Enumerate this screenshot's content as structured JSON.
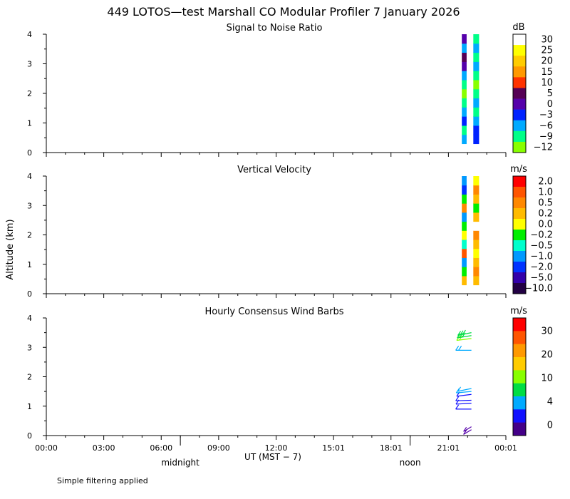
{
  "title": "449 LOTOS—test Marshall CO Modular Profiler  7 January 2026",
  "ylabel": "Altitude (km)",
  "xlabel": "UT  (MST − 7)",
  "footer": "Simple filtering applied",
  "x_marks": [
    {
      "label": "midnight",
      "hour": 7
    },
    {
      "label": "noon",
      "hour": 19
    }
  ],
  "chart_data": [
    {
      "type": "heatmap",
      "title": "Signal to Noise Ratio",
      "units": "dB",
      "ylim": [
        0,
        4
      ],
      "yticks": [
        "0",
        "1",
        "2",
        "3",
        "4"
      ],
      "xlim_hours": [
        0,
        24
      ],
      "xticks": [
        "00:00",
        "03:00",
        "06:00",
        "09:00",
        "12:00",
        "15:01",
        "18:01",
        "21:01",
        "00:01"
      ],
      "legend": {
        "labels": [
          "30",
          "25",
          "20",
          "15",
          "10",
          "5",
          "0",
          "−3",
          "−6",
          "−9",
          "−12"
        ],
        "colors": [
          "#ffffff",
          "#ffff00",
          "#ffcc00",
          "#ff9900",
          "#ff3300",
          "#550055",
          "#5500aa",
          "#0022ff",
          "#00aaff",
          "#00ff88",
          "#88ff00"
        ]
      },
      "columns": [
        {
          "start_hour": 21.7,
          "end_hour": 21.95,
          "alt_min": 0.3,
          "alt_max": 4.0,
          "cells": [
            "#00aaff",
            "#00ff88",
            "#0022ff",
            "#00aaff",
            "#00ff88",
            "#88ff00",
            "#00ff88",
            "#00aaff",
            "#5500aa",
            "#550055",
            "#00aaff",
            "#5500aa"
          ]
        },
        {
          "start_hour": 22.3,
          "end_hour": 22.6,
          "alt_min": 0.3,
          "alt_max": 4.0,
          "cells": [
            "#0022ff",
            "#0022ff",
            "#00aaff",
            "#00ff88",
            "#00aaff",
            "#00ff88",
            "#88ff00",
            "#00ff88",
            "#00aaff",
            "#00ff88",
            "#00aaff",
            "#00ff88"
          ]
        }
      ]
    },
    {
      "type": "heatmap",
      "title": "Vertical Velocity",
      "units": "m/s",
      "ylim": [
        0,
        4
      ],
      "yticks": [
        "0",
        "1",
        "2",
        "3",
        "4"
      ],
      "xlim_hours": [
        0,
        24
      ],
      "xticks": [
        "00:00",
        "03:00",
        "06:00",
        "09:00",
        "12:00",
        "15:01",
        "18:01",
        "21:01",
        "00:01"
      ],
      "legend": {
        "labels": [
          "2.0",
          "1.0",
          "0.5",
          "0.2",
          "0.0",
          "−0.2",
          "−0.5",
          "−1.0",
          "−2.0",
          "−5.0",
          "−10.0"
        ],
        "colors": [
          "#ff0000",
          "#ff5500",
          "#ff8800",
          "#ffbb00",
          "#ffff00",
          "#00ee00",
          "#00ffcc",
          "#0099ff",
          "#0033ff",
          "#3300aa",
          "#220044"
        ]
      },
      "columns": [
        {
          "start_hour": 21.7,
          "end_hour": 21.95,
          "alt_min": 0.3,
          "alt_max": 4.0,
          "cells": [
            "#ffbb00",
            "#00ee00",
            "#0099ff",
            "#ff5500",
            "#00ffcc",
            "#ffff00",
            "#00ee00",
            "#0099ff",
            "#ff8800",
            "#00ee00",
            "#0033ff",
            "#0099ff"
          ]
        },
        {
          "start_hour": 22.3,
          "end_hour": 22.6,
          "alt_min": 0.3,
          "alt_max": 4.0,
          "cells": [
            "#ffbb00",
            "#ff8800",
            "#ffbb00",
            "#ffff00",
            "#ffbb00",
            "#ff8800",
            "#ffffff",
            "#ffbb00",
            "#00ee00",
            "#ffbb00",
            "#ff8800",
            "#ffff00"
          ]
        }
      ]
    },
    {
      "type": "scatter",
      "title": "Hourly Consensus Wind Barbs",
      "units": "m/s",
      "ylim": [
        0,
        4
      ],
      "yticks": [
        "0",
        "1",
        "2",
        "3",
        "4"
      ],
      "xlim_hours": [
        0,
        24
      ],
      "xticks": [
        "00:00",
        "03:00",
        "06:00",
        "09:00",
        "12:00",
        "15:01",
        "18:01",
        "21:01",
        "00:01"
      ],
      "legend": {
        "labels": [
          "30",
          "20",
          "10",
          "4",
          "0"
        ],
        "colors": [
          "#ff0000",
          "#ff5500",
          "#ff9900",
          "#ffcc00",
          "#88ff00",
          "#00dd44",
          "#00aaff",
          "#1111ff",
          "#440088"
        ]
      },
      "barbs": [
        {
          "hour": 22.2,
          "alt": 0.2,
          "speed": 6,
          "dir": 210,
          "color": "#5500aa"
        },
        {
          "hour": 22.2,
          "alt": 0.3,
          "speed": 6,
          "dir": 210,
          "color": "#5500aa"
        },
        {
          "hour": 22.2,
          "alt": 0.9,
          "speed": 4,
          "dir": 270,
          "color": "#1111ff"
        },
        {
          "hour": 22.2,
          "alt": 1.1,
          "speed": 4,
          "dir": 260,
          "color": "#1111ff"
        },
        {
          "hour": 22.2,
          "alt": 1.2,
          "speed": 4,
          "dir": 265,
          "color": "#1111ff"
        },
        {
          "hour": 22.2,
          "alt": 1.4,
          "speed": 5,
          "dir": 250,
          "color": "#1111ff"
        },
        {
          "hour": 22.2,
          "alt": 1.5,
          "speed": 6,
          "dir": 255,
          "color": "#00aaff"
        },
        {
          "hour": 22.2,
          "alt": 1.6,
          "speed": 6,
          "dir": 240,
          "color": "#00aaff"
        },
        {
          "hour": 22.2,
          "alt": 2.9,
          "speed": 8,
          "dir": 270,
          "color": "#00aaff"
        },
        {
          "hour": 22.2,
          "alt": 3.3,
          "speed": 12,
          "dir": 250,
          "color": "#88ff00"
        },
        {
          "hour": 22.2,
          "alt": 3.4,
          "speed": 13,
          "dir": 245,
          "color": "#00dd44"
        },
        {
          "hour": 22.2,
          "alt": 3.5,
          "speed": 14,
          "dir": 240,
          "color": "#00dd44"
        }
      ]
    }
  ]
}
